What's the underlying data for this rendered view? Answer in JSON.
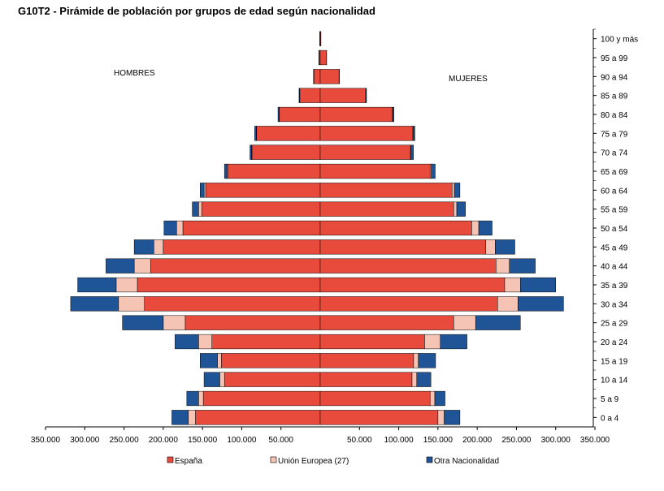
{
  "title": "G10T2 - Pirámide de población por grupos de edad según nacionalidad",
  "side_labels": {
    "left": "HOMBRES",
    "right": "MUJERES"
  },
  "colors": {
    "espana": "#e84b3c",
    "ue": "#f5c4b4",
    "otra": "#1f5597"
  },
  "chart_data": {
    "type": "bar",
    "orientation": "horizontal-pyramid",
    "categories": [
      "0 a 4",
      "5 a 9",
      "10 a 14",
      "15 a 19",
      "20 a 24",
      "25 a 29",
      "30 a 34",
      "35 a 39",
      "40 a 44",
      "45 a 49",
      "50 a 54",
      "55 a 59",
      "60 a 64",
      "65 a 69",
      "70 a 74",
      "75 a 79",
      "80 a 84",
      "85 a 89",
      "90 a 94",
      "95 a 99",
      "100 y más"
    ],
    "xlim": [
      -350000,
      350000
    ],
    "xticks": [
      {
        "value": -350000,
        "label": "350.000"
      },
      {
        "value": -300000,
        "label": "300.000"
      },
      {
        "value": -250000,
        "label": "250.000"
      },
      {
        "value": -200000,
        "label": "200.000"
      },
      {
        "value": -150000,
        "label": "150.000"
      },
      {
        "value": -100000,
        "label": "100.000"
      },
      {
        "value": -50000,
        "label": "50.000"
      },
      {
        "value": 50000,
        "label": "50.000"
      },
      {
        "value": 100000,
        "label": "100.000"
      },
      {
        "value": 150000,
        "label": "150.000"
      },
      {
        "value": 200000,
        "label": "200.000"
      },
      {
        "value": 250000,
        "label": "250.000"
      },
      {
        "value": 300000,
        "label": "300.000"
      },
      {
        "value": 350000,
        "label": "350.000"
      }
    ],
    "series": [
      {
        "name": "España",
        "key": "espana",
        "men": [
          159000,
          149000,
          122000,
          126000,
          138000,
          172000,
          224000,
          233000,
          216000,
          200000,
          175000,
          151000,
          146000,
          118000,
          87000,
          81000,
          52000,
          26000,
          8000,
          1500,
          400
        ],
        "women": [
          150000,
          140000,
          117000,
          119000,
          133000,
          170000,
          226000,
          235000,
          224000,
          211000,
          193000,
          170000,
          168000,
          140000,
          115000,
          118000,
          92000,
          58000,
          24000,
          8000,
          800
        ]
      },
      {
        "name": "Unión Europea (27)",
        "key": "ue",
        "men": [
          9000,
          6000,
          6000,
          5000,
          17000,
          28000,
          33000,
          27000,
          21000,
          12000,
          8000,
          4000,
          2000,
          1000,
          500,
          500,
          300,
          200,
          100,
          50,
          20
        ],
        "women": [
          8000,
          6000,
          6000,
          6000,
          20000,
          28000,
          26000,
          20000,
          17000,
          12000,
          9000,
          4000,
          3000,
          1500,
          800,
          600,
          400,
          200,
          100,
          30,
          10
        ]
      },
      {
        "name": "Otra Nacionalidad",
        "key": "otra",
        "men": [
          21000,
          15000,
          20000,
          22000,
          30000,
          52000,
          61000,
          49000,
          36000,
          25000,
          16000,
          8000,
          5000,
          3000,
          2000,
          2000,
          1500,
          800,
          500,
          200,
          100
        ],
        "women": [
          20000,
          13000,
          18000,
          22000,
          34000,
          57000,
          58000,
          45000,
          33000,
          25000,
          17000,
          11000,
          7000,
          5000,
          3000,
          2000,
          1500,
          800,
          500,
          200,
          100
        ]
      }
    ],
    "legend": [
      "España",
      "Unión Europea (27)",
      "Otra Nacionalidad"
    ],
    "legend_position": "bottom"
  }
}
